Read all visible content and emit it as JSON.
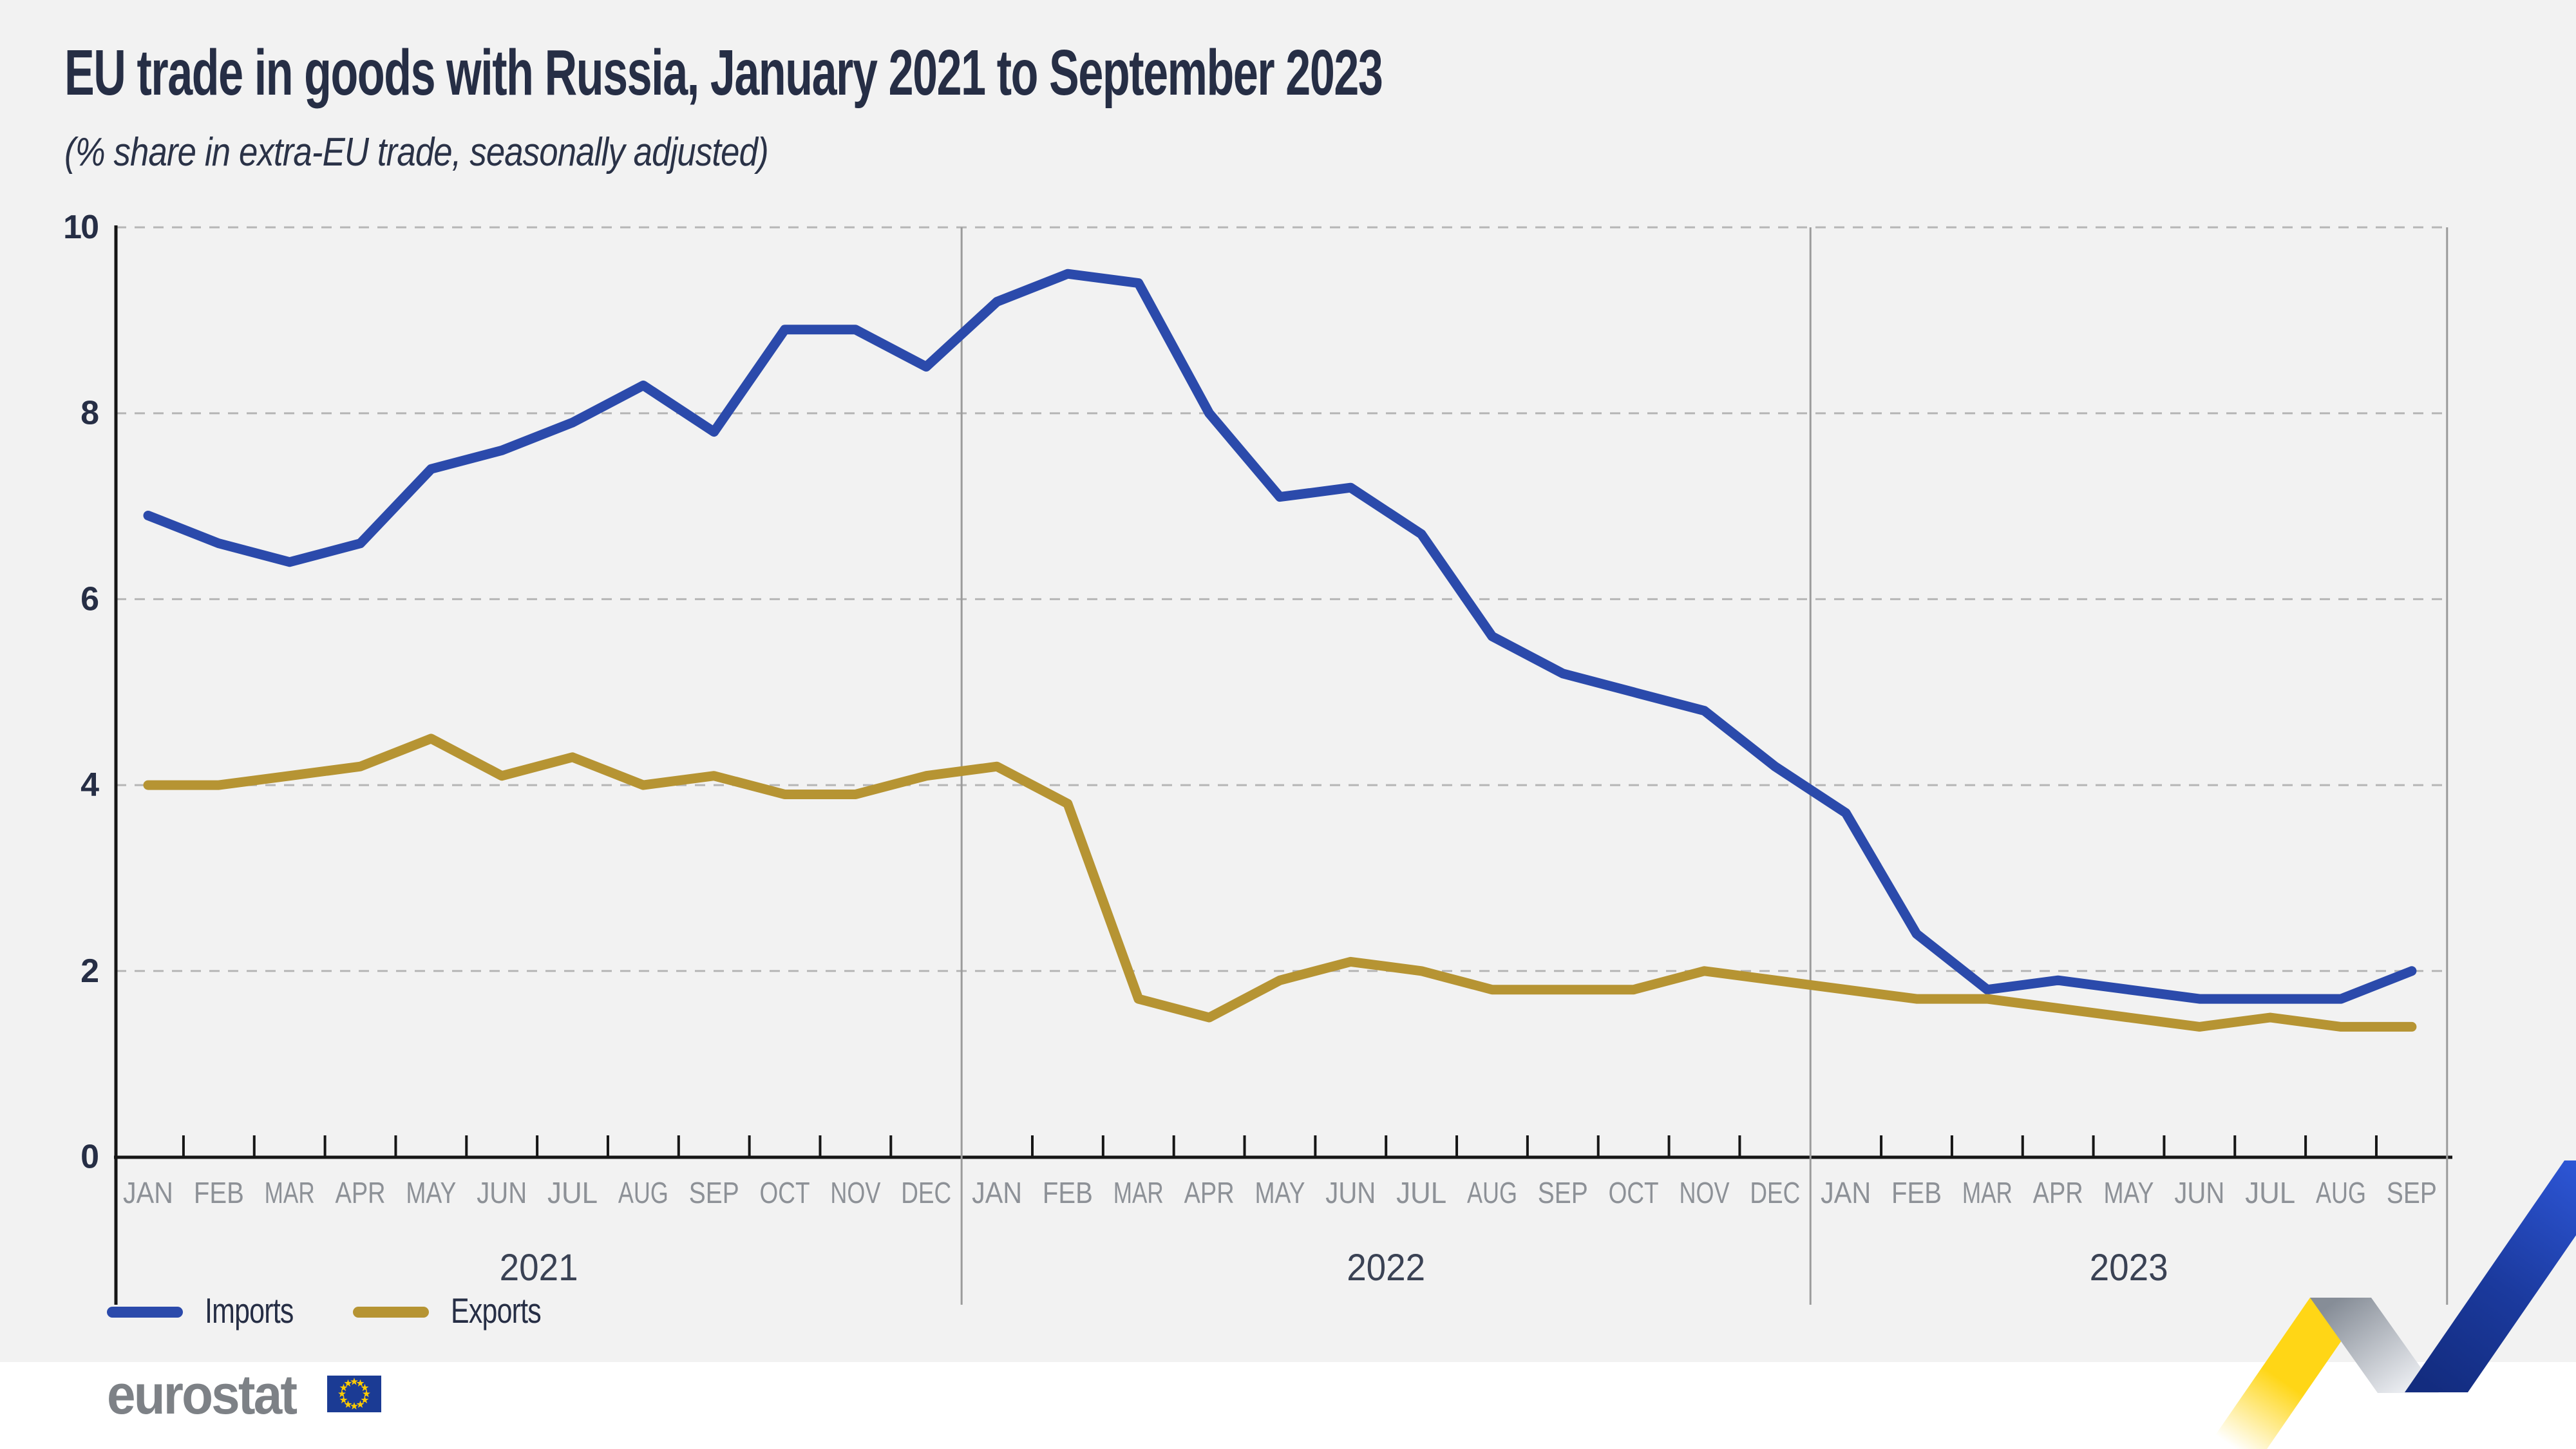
{
  "header": {
    "title": "EU trade in goods with Russia, January 2021 to September 2023",
    "subtitle": "(% share in extra-EU trade, seasonally adjusted)"
  },
  "legend": {
    "items": [
      {
        "label": "Imports",
        "color": "#2b4aab"
      },
      {
        "label": "Exports",
        "color": "#b69433"
      }
    ]
  },
  "footer": {
    "brand": "eurostat"
  },
  "colors": {
    "background": "#f2f2f2",
    "footer_background": "#ffffff",
    "title_text": "#262e45",
    "axis": "#161616",
    "gridline": "#b6b6b6",
    "divider": "#9b9b9b",
    "month_label": "#8d9197",
    "year_label": "#3a4254",
    "imports": "#2b4aab",
    "exports": "#b69433",
    "eurostat_gray": "#7d8186",
    "eu_flag_blue": "#1b3b94",
    "eu_star_yellow": "#ffcc00",
    "ribbon_yellow": "#ffd616"
  },
  "chart_data": {
    "type": "line",
    "title": "EU trade in goods with Russia, January 2021 to September 2023",
    "subtitle": "(% share in extra-EU trade, seasonally adjusted)",
    "ylabel": "% share in extra-EU trade",
    "ylim": [
      0,
      10
    ],
    "y_ticks": [
      0,
      2,
      4,
      6,
      8,
      10
    ],
    "grid": "horizontal-dashed",
    "legend_position": "bottom-left",
    "x_labels": [
      "JAN",
      "FEB",
      "MAR",
      "APR",
      "MAY",
      "JUN",
      "JUL",
      "AUG",
      "SEP",
      "OCT",
      "NOV",
      "DEC",
      "JAN",
      "FEB",
      "MAR",
      "APR",
      "MAY",
      "JUN",
      "JUL",
      "AUG",
      "SEP",
      "OCT",
      "NOV",
      "DEC",
      "JAN",
      "FEB",
      "MAR",
      "APR",
      "MAY",
      "JUN",
      "JUL",
      "AUG",
      "SEP"
    ],
    "years": [
      {
        "label": "2021",
        "months": 12
      },
      {
        "label": "2022",
        "months": 12
      },
      {
        "label": "2023",
        "months": 9
      }
    ],
    "series": [
      {
        "name": "Imports",
        "color": "#2b4aab",
        "values": [
          6.9,
          6.6,
          6.4,
          6.6,
          7.4,
          7.6,
          7.9,
          8.3,
          7.8,
          8.9,
          8.9,
          8.5,
          9.2,
          9.5,
          9.4,
          8.0,
          7.1,
          7.2,
          6.7,
          5.6,
          5.2,
          5.0,
          4.8,
          4.2,
          3.7,
          2.4,
          1.8,
          1.9,
          1.8,
          1.7,
          1.7,
          1.7,
          2.0
        ]
      },
      {
        "name": "Exports",
        "color": "#b69433",
        "values": [
          4.0,
          4.0,
          4.1,
          4.2,
          4.5,
          4.1,
          4.3,
          4.0,
          4.1,
          3.9,
          3.9,
          4.1,
          4.2,
          3.8,
          1.7,
          1.5,
          1.9,
          2.1,
          2.0,
          1.8,
          1.8,
          1.8,
          2.0,
          1.9,
          1.8,
          1.7,
          1.7,
          1.6,
          1.5,
          1.4,
          1.5,
          1.4,
          1.4
        ]
      }
    ]
  }
}
